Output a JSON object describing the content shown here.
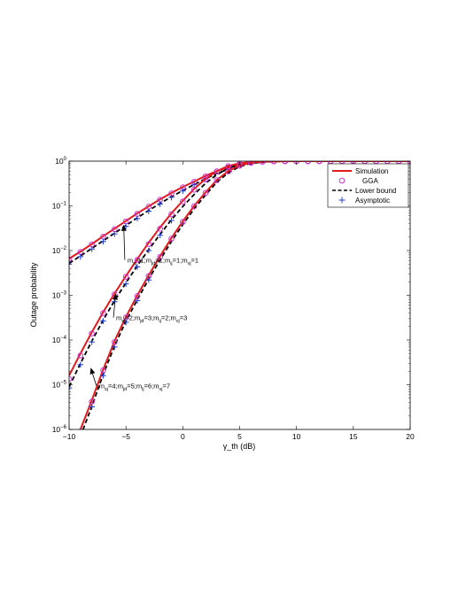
{
  "chart_data": {
    "type": "line",
    "xlabel": "γ_th (dB)",
    "ylabel": "Outage probability",
    "xlim": [
      -10,
      20
    ],
    "ylim": [
      1e-06,
      1
    ],
    "yscale": "log",
    "grid": false,
    "legend_placement": "top-right",
    "x_ticks": [
      "−10",
      "−5",
      "0",
      "5",
      "10",
      "15",
      "20"
    ],
    "y_ticks": [
      {
        "base": "10",
        "exp": "0"
      },
      {
        "base": "10",
        "exp": "−1"
      },
      {
        "base": "10",
        "exp": "−2"
      },
      {
        "base": "10",
        "exp": "−3"
      },
      {
        "base": "10",
        "exp": "−4"
      },
      {
        "base": "10",
        "exp": "−5"
      },
      {
        "base": "10",
        "exp": "−6"
      }
    ],
    "legend": [
      {
        "name": "Simulation",
        "style": "solid-red"
      },
      {
        "name": "GGA",
        "style": "circle-magenta"
      },
      {
        "name": "Lower bound",
        "style": "dashed-black"
      },
      {
        "name": "Asymptotic",
        "style": "plus-blue"
      }
    ],
    "annotations": [
      {
        "text": "m_sj=1;m_jd=1;m_ij=1;m_vj=1",
        "tx": -5.1,
        "ty": 0.0062,
        "ax": -5.2,
        "ay": 0.038
      },
      {
        "text": "m_sj=2;m_jd=3;m_ij=2;m_vj=3",
        "tx": -6.1,
        "ty": 0.00032,
        "ax": -5.9,
        "ay": 0.0011
      },
      {
        "text": "m_sj=4;m_jd=5;m_ij=6;m_vj=7",
        "tx": -7.6,
        "ty": 9.5e-06,
        "ax": -8.1,
        "ay": 2.4e-05
      }
    ],
    "series": [
      {
        "group": "m_sj=1;m_jd=1;m_ij=1;m_vj=1",
        "x": [
          -10,
          -9,
          -8,
          -7,
          -6,
          -5,
          -4,
          -3,
          -2,
          -1,
          0,
          1,
          2,
          3,
          4,
          5,
          6,
          7,
          8,
          9,
          10,
          11,
          12,
          13,
          14,
          15,
          16,
          17,
          18,
          19,
          20
        ],
        "simulation": [
          0.0066,
          0.0095,
          0.014,
          0.021,
          0.031,
          0.046,
          0.068,
          0.098,
          0.14,
          0.195,
          0.265,
          0.35,
          0.47,
          0.6,
          0.73,
          0.85,
          0.93,
          0.97,
          0.99,
          0.996,
          0.999,
          1,
          1,
          1,
          1,
          1,
          1,
          1,
          1,
          1,
          1
        ],
        "gga": [
          0.0064,
          0.0093,
          0.0137,
          0.0205,
          0.03,
          0.045,
          0.066,
          0.096,
          0.137,
          0.19,
          0.26,
          0.345,
          0.46,
          0.59,
          0.72,
          0.84,
          0.92,
          0.97,
          0.99,
          0.996,
          0.999,
          1,
          1,
          1,
          1,
          1,
          1,
          1,
          1,
          1,
          1
        ],
        "lower_bound": [
          0.0052,
          0.0076,
          0.0112,
          0.0166,
          0.0245,
          0.0365,
          0.054,
          0.079,
          0.113,
          0.16,
          0.22,
          0.3,
          0.405,
          0.53,
          0.66,
          0.79,
          0.89,
          0.95,
          0.98,
          0.993,
          0.998,
          1,
          1,
          1,
          1,
          1,
          1,
          1,
          1,
          1,
          1
        ],
        "asymptotic": [
          0.005,
          0.0073,
          0.0108,
          0.016,
          0.0236,
          0.035,
          0.052,
          0.076,
          0.11,
          0.155,
          0.215,
          0.295,
          0.4
        ]
      },
      {
        "group": "m_sj=2;m_jd=3;m_ij=2;m_vj=3",
        "x": [
          -10,
          -9,
          -8,
          -7,
          -6,
          -5,
          -4,
          -3,
          -2,
          -1,
          0,
          1,
          2,
          3,
          4,
          5,
          6,
          7,
          8,
          9,
          10,
          11,
          12,
          13,
          14,
          15,
          16,
          17,
          18,
          19,
          20
        ],
        "simulation": [
          1.6e-05,
          5e-05,
          0.00015,
          0.00042,
          0.0011,
          0.0027,
          0.0065,
          0.015,
          0.033,
          0.068,
          0.13,
          0.24,
          0.4,
          0.6,
          0.78,
          0.9,
          0.96,
          0.985,
          0.995,
          0.998,
          0.999,
          1,
          1,
          1,
          1,
          1,
          1,
          1,
          1,
          1,
          1
        ],
        "gga": [
          1.35e-05,
          4.5e-05,
          0.00014,
          0.0004,
          0.00105,
          0.0026,
          0.0062,
          0.014,
          0.031,
          0.065,
          0.125,
          0.23,
          0.39,
          0.59,
          0.77,
          0.89,
          0.955,
          0.985,
          0.995,
          0.998,
          0.999,
          1,
          1,
          1,
          1,
          1,
          1,
          1,
          1,
          1,
          1
        ],
        "lower_bound": [
          9e-06,
          3e-05,
          9.5e-05,
          0.00028,
          0.00076,
          0.0019,
          0.0046,
          0.0105,
          0.023,
          0.049,
          0.097,
          0.18,
          0.32,
          0.5,
          0.69,
          0.84,
          0.93,
          0.975,
          0.992,
          0.997,
          0.999,
          1,
          1,
          1,
          1,
          1,
          1,
          1,
          1,
          1,
          1
        ],
        "asymptotic": [
          8.5e-06,
          2.8e-05,
          9e-05,
          0.000265,
          0.00072,
          0.0018,
          0.0043,
          0.01,
          0.022,
          0.047
        ]
      },
      {
        "group": "m_sj=4;m_jd=5;m_ij=6;m_vj=7",
        "x": [
          -9,
          -8,
          -7,
          -6,
          -5,
          -4,
          -3,
          -2,
          -1,
          0,
          1,
          2,
          3,
          4,
          5,
          6,
          7,
          8,
          9,
          10,
          11,
          12,
          13,
          14,
          15,
          16,
          17,
          18,
          19,
          20
        ],
        "simulation": [
          1e-06,
          4.5e-06,
          2.2e-05,
          9.5e-05,
          0.00033,
          0.001,
          0.0028,
          0.0075,
          0.019,
          0.045,
          0.1,
          0.2,
          0.38,
          0.6,
          0.8,
          0.92,
          0.975,
          0.993,
          0.998,
          0.9995,
          1,
          1,
          1,
          1,
          1,
          1,
          1,
          1,
          1,
          1
        ],
        "gga": [
          9e-07,
          4.2e-06,
          2.1e-05,
          9e-05,
          0.00032,
          0.00096,
          0.0027,
          0.0072,
          0.0185,
          0.044,
          0.098,
          0.196,
          0.375,
          0.59,
          0.79,
          0.915,
          0.972,
          0.992,
          0.998,
          0.9995,
          1,
          1,
          1,
          1,
          1,
          1,
          1,
          1,
          1,
          1
        ],
        "lower_bound": [
          7e-07,
          3.3e-06,
          1.7e-05,
          7.4e-05,
          0.000265,
          0.0008,
          0.0023,
          0.0062,
          0.016,
          0.038,
          0.086,
          0.175,
          0.34,
          0.55,
          0.76,
          0.9,
          0.965,
          0.99,
          0.997,
          0.999,
          1,
          1,
          1,
          1,
          1,
          1,
          1,
          1,
          1,
          1
        ],
        "asymptotic": [
          7e-07,
          3.2e-06,
          1.6e-05,
          7e-05,
          0.00025,
          0.00076,
          0.0022
        ]
      }
    ]
  }
}
